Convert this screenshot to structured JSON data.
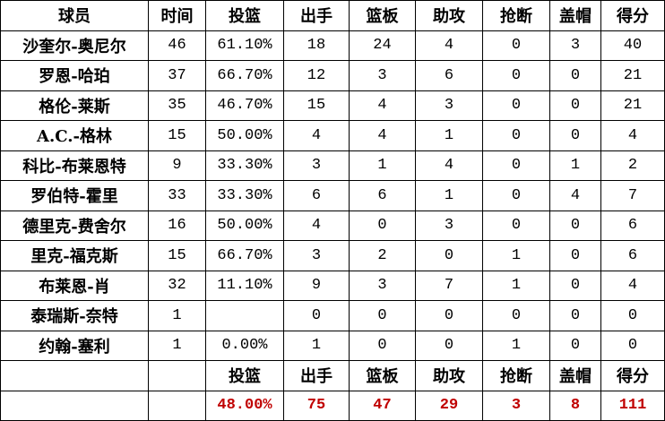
{
  "headers": [
    "球员",
    "时间",
    "投篮",
    "出手",
    "篮板",
    "助攻",
    "抢断",
    "盖帽",
    "得分"
  ],
  "rows": [
    [
      "沙奎尔-奥尼尔",
      "46",
      "61.10%",
      "18",
      "24",
      "4",
      "0",
      "3",
      "40"
    ],
    [
      "罗恩-哈珀",
      "37",
      "66.70%",
      "12",
      "3",
      "6",
      "0",
      "0",
      "21"
    ],
    [
      "格伦-莱斯",
      "35",
      "46.70%",
      "15",
      "4",
      "3",
      "0",
      "0",
      "21"
    ],
    [
      "A.C.-格林",
      "15",
      "50.00%",
      "4",
      "4",
      "1",
      "0",
      "0",
      "4"
    ],
    [
      "科比-布莱恩特",
      "9",
      "33.30%",
      "3",
      "1",
      "4",
      "0",
      "1",
      "2"
    ],
    [
      "罗伯特-霍里",
      "33",
      "33.30%",
      "6",
      "6",
      "1",
      "0",
      "4",
      "7"
    ],
    [
      "德里克-费舍尔",
      "16",
      "50.00%",
      "4",
      "0",
      "3",
      "0",
      "0",
      "6"
    ],
    [
      "里克-福克斯",
      "15",
      "66.70%",
      "3",
      "2",
      "0",
      "1",
      "0",
      "6"
    ],
    [
      "布莱恩-肖",
      "32",
      "11.10%",
      "9",
      "3",
      "7",
      "1",
      "0",
      "4"
    ],
    [
      "泰瑞斯-奈特",
      "1",
      "",
      "0",
      "0",
      "0",
      "0",
      "0",
      "0"
    ],
    [
      "约翰-塞利",
      "1",
      "0.00%",
      "1",
      "0",
      "0",
      "1",
      "0",
      "0"
    ]
  ],
  "summary_headers": [
    "",
    "",
    "投篮",
    "出手",
    "篮板",
    "助攻",
    "抢断",
    "盖帽",
    "得分"
  ],
  "totals": [
    "",
    "",
    "48.00%",
    "75",
    "47",
    "29",
    "3",
    "8",
    "111"
  ],
  "colors": {
    "totals": "#c00000"
  }
}
